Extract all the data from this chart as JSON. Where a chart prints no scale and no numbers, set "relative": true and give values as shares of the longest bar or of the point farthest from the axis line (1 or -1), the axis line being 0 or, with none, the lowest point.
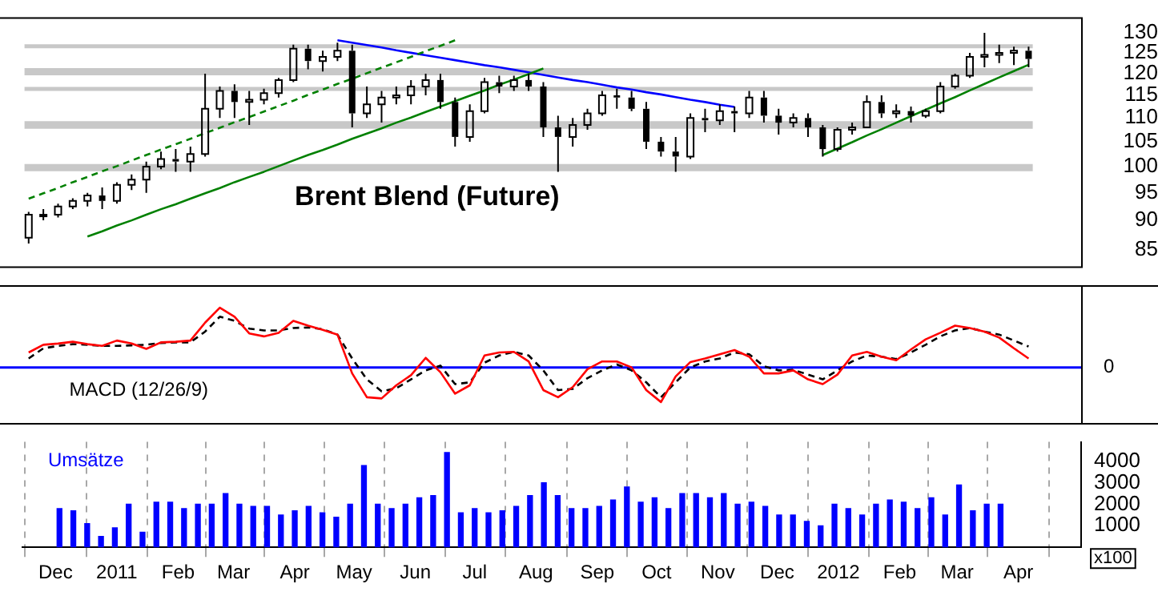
{
  "chart_data": [
    {
      "type": "candlestick",
      "title": "Brent Blend (Future)",
      "color": "#000000",
      "log": true,
      "ylim": [
        82,
        134
      ],
      "yticks": [
        85,
        90,
        95,
        100,
        105,
        110,
        115,
        120,
        125,
        130
      ],
      "tick_labels": "y",
      "legend": false,
      "categories": [
        null,
        null,
        null,
        null,
        null,
        null,
        null,
        null,
        null,
        null,
        null,
        null,
        null,
        null,
        null,
        null,
        null,
        null,
        null,
        null,
        null,
        null,
        null,
        null,
        null,
        null,
        null,
        null,
        null,
        null,
        null,
        null,
        null,
        null,
        null,
        null,
        null,
        null,
        null,
        null,
        null,
        null,
        null,
        null,
        null,
        null,
        null,
        null,
        null,
        null,
        null,
        null,
        null,
        null,
        null,
        null,
        null,
        null,
        null,
        null,
        null,
        null,
        null,
        null,
        null,
        null,
        null,
        null,
        null
      ],
      "ohlc": [
        [
          87,
          91.5,
          86,
          91
        ],
        [
          91,
          92,
          90,
          91
        ],
        [
          91,
          93,
          90.5,
          92.5
        ],
        [
          92.5,
          94,
          92,
          93.5
        ],
        [
          93.5,
          95,
          92.5,
          94.5
        ],
        [
          94.5,
          96,
          92,
          93.5
        ],
        [
          93.5,
          97,
          93,
          96.5
        ],
        [
          96.5,
          98.5,
          95.5,
          97.5
        ],
        [
          97.5,
          101,
          95,
          100
        ],
        [
          100,
          103,
          99.5,
          101.5
        ],
        [
          101.5,
          103.5,
          99,
          101
        ],
        [
          101,
          104,
          99,
          102.5
        ],
        [
          102.5,
          120,
          102,
          112
        ],
        [
          112,
          117,
          110,
          116
        ],
        [
          116,
          117.5,
          110,
          113.5
        ],
        [
          113.5,
          116,
          108.5,
          114
        ],
        [
          114,
          116.5,
          113,
          115.5
        ],
        [
          115.5,
          119,
          114.5,
          118.5
        ],
        [
          118.5,
          127,
          118,
          126
        ],
        [
          126,
          127,
          121,
          123
        ],
        [
          123,
          125.5,
          120.5,
          124
        ],
        [
          124,
          127.5,
          123,
          125.5
        ],
        [
          125.5,
          127,
          108,
          111
        ],
        [
          111,
          117,
          110,
          113
        ],
        [
          113,
          116,
          109,
          114.5
        ],
        [
          114.5,
          117,
          113,
          115
        ],
        [
          115,
          118.5,
          113,
          117
        ],
        [
          117,
          120,
          115,
          118.5
        ],
        [
          118.5,
          120,
          112,
          113.5
        ],
        [
          113.5,
          114.5,
          104,
          106
        ],
        [
          106,
          113,
          105,
          111.5
        ],
        [
          111.5,
          119,
          111,
          118
        ],
        [
          118,
          119.5,
          115.5,
          117
        ],
        [
          117,
          119.5,
          116,
          118.5
        ],
        [
          118.5,
          120,
          116,
          117
        ],
        [
          117,
          118,
          106,
          108
        ],
        [
          108,
          110.5,
          99,
          106
        ],
        [
          106,
          110,
          104,
          108.5
        ],
        [
          108.5,
          112,
          107.5,
          111
        ],
        [
          111,
          116,
          110.5,
          115
        ],
        [
          115,
          116.5,
          112,
          114.5
        ],
        [
          114.5,
          116,
          111.5,
          112
        ],
        [
          112,
          113.5,
          103.5,
          105
        ],
        [
          105,
          106,
          102,
          103
        ],
        [
          103,
          106,
          99,
          102
        ],
        [
          102,
          111,
          101.5,
          110
        ],
        [
          110,
          112,
          107,
          109.5
        ],
        [
          109.5,
          113,
          108.5,
          111.5
        ],
        [
          111.5,
          112.5,
          107,
          111
        ],
        [
          111,
          116,
          110,
          114.5
        ],
        [
          114.5,
          116,
          109,
          110.5
        ],
        [
          110.5,
          112,
          106.5,
          109
        ],
        [
          109,
          111,
          108,
          110
        ],
        [
          110,
          111,
          106,
          108
        ],
        [
          108,
          108.5,
          102,
          103.5
        ],
        [
          103.5,
          108,
          103,
          107.5
        ],
        [
          107.5,
          109,
          106.5,
          108
        ],
        [
          108,
          115,
          108,
          113.5
        ],
        [
          113.5,
          115,
          110,
          111
        ],
        [
          111,
          113,
          110,
          111.5
        ],
        [
          111.5,
          112.5,
          109,
          110.5
        ],
        [
          110.5,
          112,
          110,
          111.5
        ],
        [
          111.5,
          118,
          111,
          117
        ],
        [
          117,
          120,
          116.5,
          119.5
        ],
        [
          119.5,
          125,
          119,
          124
        ],
        [
          124,
          130,
          121.5,
          124.5
        ],
        [
          124.5,
          127,
          122.5,
          125
        ],
        [
          125,
          126.5,
          122,
          125.5
        ],
        [
          125.5,
          126.5,
          121.5,
          123.5
        ]
      ],
      "series": [
        {
          "type": "line",
          "color": "#008000",
          "line_style": "solid",
          "values": [
            null,
            null,
            null,
            null,
            87.2,
            88.1,
            89.1,
            90,
            91,
            92,
            92.9,
            93.9,
            94.9,
            95.9,
            97,
            98,
            99,
            100.1,
            101.2,
            102.3,
            103.3,
            104.4,
            105.6,
            106.7,
            107.8,
            109,
            110.1,
            111.3,
            112.5,
            113.7,
            114.9,
            116.1,
            117.4,
            118.6,
            119.9,
            121.2,
            null,
            null,
            null,
            null,
            null,
            null,
            null,
            null,
            null,
            null,
            null,
            null,
            null,
            null,
            null,
            null,
            null,
            null,
            null,
            null,
            null,
            null,
            null,
            null,
            null,
            null,
            null,
            null,
            null,
            null,
            null,
            null,
            null
          ]
        },
        {
          "type": "line",
          "color": "#008000",
          "line_style": "dashed",
          "values": [
            93.9,
            94.9,
            95.9,
            97,
            98,
            99.1,
            100.1,
            101.2,
            102.3,
            103.4,
            104.5,
            105.6,
            106.8,
            107.9,
            109.1,
            110.2,
            111.4,
            112.6,
            113.8,
            115.1,
            116.3,
            117.6,
            118.8,
            120.1,
            121.4,
            122.7,
            124,
            125.4,
            126.7,
            128.1,
            null,
            null,
            null,
            null,
            null,
            null,
            null,
            null,
            null,
            null,
            null,
            null,
            null,
            null,
            null,
            null,
            null,
            null,
            null,
            null,
            null,
            null,
            null,
            null,
            null,
            null,
            null,
            null,
            null,
            null,
            null,
            null,
            null,
            null,
            null,
            null,
            null,
            null,
            null
          ]
        },
        {
          "type": "line",
          "color": "#0000ff",
          "line_style": "solid",
          "values": [
            null,
            null,
            null,
            null,
            null,
            null,
            null,
            null,
            null,
            null,
            null,
            null,
            null,
            null,
            null,
            null,
            null,
            null,
            null,
            null,
            null,
            128.1,
            127.5,
            126.9,
            126.3,
            125.6,
            125,
            124.4,
            123.8,
            123.2,
            122.6,
            122,
            121.5,
            120.9,
            120.3,
            119.7,
            119.1,
            118.5,
            118,
            117.4,
            116.8,
            116.3,
            115.7,
            115.2,
            114.6,
            114,
            113.5,
            112.9,
            112.4,
            null,
            null,
            null,
            null,
            null,
            null,
            null,
            null,
            null,
            null,
            null,
            null,
            null,
            null,
            null,
            null,
            null,
            null,
            null,
            null
          ]
        },
        {
          "type": "line",
          "color": "#008000",
          "line_style": "solid",
          "values": [
            null,
            null,
            null,
            null,
            null,
            null,
            null,
            null,
            null,
            null,
            null,
            null,
            null,
            null,
            null,
            null,
            null,
            null,
            null,
            null,
            null,
            null,
            null,
            null,
            null,
            null,
            null,
            null,
            null,
            null,
            null,
            null,
            null,
            null,
            null,
            null,
            null,
            null,
            null,
            null,
            null,
            null,
            null,
            null,
            null,
            null,
            null,
            null,
            null,
            null,
            null,
            null,
            null,
            null,
            102.3,
            103.6,
            104.9,
            106.3,
            107.6,
            109,
            110.4,
            111.8,
            113.2,
            114.6,
            116.1,
            117.6,
            119.1,
            120.6,
            122.1
          ]
        }
      ],
      "bands": [
        {
          "axis": "y",
          "from": 126.1,
          "to": 127.1,
          "color": "#c8c8c8"
        },
        {
          "axis": "y",
          "from": 119.6,
          "to": 121.3,
          "color": "#c8c8c8"
        },
        {
          "axis": "y",
          "from": 116,
          "to": 116.9,
          "color": "#c8c8c8"
        },
        {
          "axis": "y",
          "from": 107.7,
          "to": 109.3,
          "color": "#c8c8c8"
        },
        {
          "axis": "y",
          "from": 99.1,
          "to": 100.5,
          "color": "#c8c8c8"
        }
      ]
    },
    {
      "type": "line",
      "relative": true,
      "annotations": [
        "MACD (12/26/9)"
      ],
      "tick_labels": false,
      "legend": false,
      "ref_lines": [
        {
          "axis": "y",
          "value": 0,
          "label": "0",
          "color": "#0000ff"
        }
      ],
      "categories": [
        null,
        null,
        null,
        null,
        null,
        null,
        null,
        null,
        null,
        null,
        null,
        null,
        null,
        null,
        null,
        null,
        null,
        null,
        null,
        null,
        null,
        null,
        null,
        null,
        null,
        null,
        null,
        null,
        null,
        null,
        null,
        null,
        null,
        null,
        null,
        null,
        null,
        null,
        null,
        null,
        null,
        null,
        null,
        null,
        null,
        null,
        null,
        null,
        null,
        null,
        null,
        null,
        null,
        null,
        null,
        null,
        null,
        null,
        null,
        null,
        null,
        null,
        null,
        null,
        null,
        null,
        null,
        null,
        null
      ],
      "series": [
        {
          "color": "#ff0000",
          "line_style": "solid",
          "values": [
            0.25,
            0.38,
            0.4,
            0.43,
            0.39,
            0.36,
            0.45,
            0.4,
            0.31,
            0.42,
            0.43,
            0.45,
            0.75,
            1,
            0.85,
            0.57,
            0.52,
            0.58,
            0.78,
            0.7,
            0.63,
            0.55,
            -0.1,
            -0.5,
            -0.52,
            -0.3,
            -0.13,
            0.16,
            -0.08,
            -0.44,
            -0.3,
            0.2,
            0.25,
            0.26,
            0.1,
            -0.38,
            -0.5,
            -0.33,
            -0.03,
            0.1,
            0.1,
            0,
            -0.38,
            -0.58,
            -0.15,
            0.09,
            0.15,
            0.22,
            0.29,
            0.18,
            -0.1,
            -0.1,
            -0.05,
            -0.2,
            -0.28,
            -0.12,
            0.2,
            0.26,
            0.18,
            0.12,
            0.3,
            0.47,
            0.58,
            0.7,
            0.66,
            0.6,
            0.5,
            0.32,
            0.15
          ]
        },
        {
          "color": "#000000",
          "line_style": "dashed",
          "values": [
            0.15,
            0.32,
            0.36,
            0.39,
            0.38,
            0.36,
            0.36,
            0.37,
            0.38,
            0.41,
            0.42,
            0.42,
            0.6,
            0.85,
            0.78,
            0.65,
            0.62,
            0.62,
            0.66,
            0.67,
            0.64,
            0.55,
            0.15,
            -0.2,
            -0.4,
            -0.35,
            -0.2,
            -0.05,
            0.03,
            -0.28,
            -0.25,
            0.08,
            0.2,
            0.26,
            0.2,
            -0.05,
            -0.38,
            -0.36,
            -0.18,
            -0.05,
            0.05,
            -0.05,
            -0.25,
            -0.5,
            -0.25,
            0,
            0.1,
            0.15,
            0.25,
            0.22,
            0.02,
            -0.05,
            -0.04,
            -0.12,
            -0.2,
            -0.05,
            0.1,
            0.2,
            0.18,
            0.14,
            0.25,
            0.38,
            0.52,
            0.62,
            0.66,
            0.6,
            0.55,
            0.45,
            0.35
          ]
        }
      ]
    },
    {
      "type": "bar",
      "color": "#0000ff",
      "ylim": [
        0,
        4900
      ],
      "yticks": [
        1000,
        2000,
        3000,
        4000
      ],
      "ylabel": "x100",
      "annotations": [
        "Umsätze"
      ],
      "xlim": [
        "2010-11-30",
        "2012-04-17"
      ],
      "xticks": [
        {
          "value": "2010-12-01",
          "label": "Dec"
        },
        {
          "value": "2011-01-01",
          "label": "2011"
        },
        {
          "value": "2011-02-01",
          "label": "Feb"
        },
        {
          "value": "2011-03-01",
          "label": "Mar"
        },
        {
          "value": "2011-04-01",
          "label": "Apr"
        },
        {
          "value": "2011-05-01",
          "label": "May"
        },
        {
          "value": "2011-06-01",
          "label": "Jun"
        },
        {
          "value": "2011-07-01",
          "label": "Jul"
        },
        {
          "value": "2011-08-01",
          "label": "Aug"
        },
        {
          "value": "2011-09-01",
          "label": "Sep"
        },
        {
          "value": "2011-10-01",
          "label": "Oct"
        },
        {
          "value": "2011-11-01",
          "label": "Nov"
        },
        {
          "value": "2011-12-01",
          "label": "Dec"
        },
        {
          "value": "2012-01-01",
          "label": "2012"
        },
        {
          "value": "2012-02-01",
          "label": "Feb"
        },
        {
          "value": "2012-03-01",
          "label": "Mar"
        },
        {
          "value": "2012-04-01",
          "label": "Apr"
        }
      ],
      "grid": "x",
      "legend": false,
      "x": [
        "2010-12-03",
        "2010-12-10",
        "2010-12-17",
        "2010-12-24",
        "2010-12-31",
        "2011-01-07",
        "2011-01-14",
        "2011-01-21",
        "2011-01-28",
        "2011-02-04",
        "2011-02-11",
        "2011-02-18",
        "2011-02-25",
        "2011-03-04",
        "2011-03-11",
        "2011-03-18",
        "2011-03-25",
        "2011-04-01",
        "2011-04-08",
        "2011-04-15",
        "2011-04-22",
        "2011-04-29",
        "2011-05-06",
        "2011-05-13",
        "2011-05-20",
        "2011-05-27",
        "2011-06-03",
        "2011-06-10",
        "2011-06-17",
        "2011-06-24",
        "2011-07-01",
        "2011-07-08",
        "2011-07-15",
        "2011-07-22",
        "2011-07-29",
        "2011-08-05",
        "2011-08-12",
        "2011-08-19",
        "2011-08-26",
        "2011-09-02",
        "2011-09-09",
        "2011-09-16",
        "2011-09-23",
        "2011-09-30",
        "2011-10-07",
        "2011-10-14",
        "2011-10-21",
        "2011-10-28",
        "2011-11-04",
        "2011-11-11",
        "2011-11-18",
        "2011-11-25",
        "2011-12-02",
        "2011-12-09",
        "2011-12-16",
        "2011-12-23",
        "2011-12-30",
        "2012-01-06",
        "2012-01-13",
        "2012-01-20",
        "2012-01-27",
        "2012-02-03",
        "2012-02-10",
        "2012-02-17",
        "2012-02-24",
        "2012-03-02",
        "2012-03-09",
        "2012-03-16",
        "2012-03-23"
      ],
      "values": [
        1800,
        1700,
        1100,
        500,
        900,
        2000,
        700,
        2100,
        2100,
        1800,
        2000,
        2000,
        2500,
        2000,
        1900,
        1900,
        1500,
        1700,
        1900,
        1600,
        1400,
        2000,
        3800,
        2000,
        1800,
        2000,
        2300,
        2400,
        4400,
        1600,
        1800,
        1600,
        1700,
        1900,
        2400,
        3000,
        2400,
        1800,
        1800,
        1900,
        2200,
        2800,
        2100,
        2300,
        1800,
        2500,
        2500,
        2300,
        2500,
        2000,
        2100,
        1900,
        1500,
        1500,
        1200,
        1000,
        2000,
        1800,
        1500,
        2000,
        2200,
        2100,
        1800,
        2300,
        1500,
        2900,
        1700,
        2000,
        2000
      ]
    }
  ]
}
